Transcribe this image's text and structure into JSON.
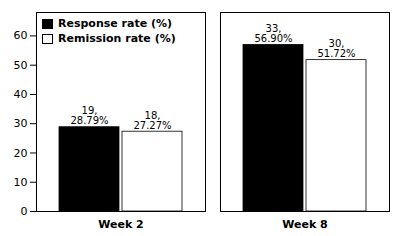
{
  "chart_data": {
    "type": "bar",
    "categories": [
      "Week 2",
      "Week 8"
    ],
    "series": [
      {
        "name": "Response rate (%)",
        "color": "#000000",
        "values": [
          28.79,
          56.9
        ],
        "value_labels": [
          "19,\n28.79%",
          "33,\n56.90%"
        ]
      },
      {
        "name": "Remission rate (%)",
        "color": "#ffffff",
        "values": [
          27.27,
          51.72
        ],
        "value_labels": [
          "18,\n27.27%",
          "30,\n51.72%"
        ]
      }
    ],
    "ylim": [
      0,
      68
    ],
    "yticks": [
      0,
      10,
      20,
      30,
      40,
      50,
      60
    ],
    "data_labels": true,
    "legend": "upper left",
    "grid": false
  }
}
